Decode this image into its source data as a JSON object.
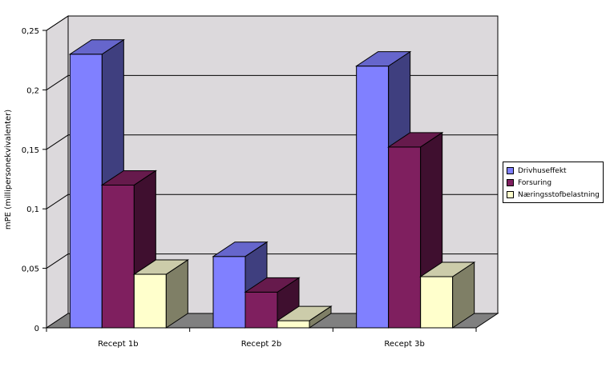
{
  "chart_data": {
    "type": "bar",
    "style": "3d-clustered",
    "categories": [
      "Recept 1b",
      "Recept 2b",
      "Recept 3b"
    ],
    "series": [
      {
        "name": "Drivhuseffekt",
        "values": [
          0.23,
          0.06,
          0.22
        ],
        "color": "#8080ff",
        "side_color": "#3f3f7f",
        "top_color": "#6666cc"
      },
      {
        "name": "Forsuring",
        "values": [
          0.12,
          0.03,
          0.152
        ],
        "color": "#7f1f5f",
        "side_color": "#3f0f2f",
        "top_color": "#661a4c"
      },
      {
        "name": "Næringsstofbelastning",
        "values": [
          0.045,
          0.006,
          0.043
        ],
        "color": "#ffffcc",
        "side_color": "#7f7f66",
        "top_color": "#ccccaa"
      }
    ],
    "ylabel": "mPE (millipersonekvivalenter)",
    "xlabel": "",
    "title": "",
    "ylim": [
      0,
      0.25
    ],
    "yticks": [
      "0",
      "0,05",
      "0,1",
      "0,15",
      "0,2",
      "0,25"
    ],
    "grid": true,
    "legend": "right",
    "wall_color": "#dcd9dc",
    "floor_color": "#808080"
  }
}
